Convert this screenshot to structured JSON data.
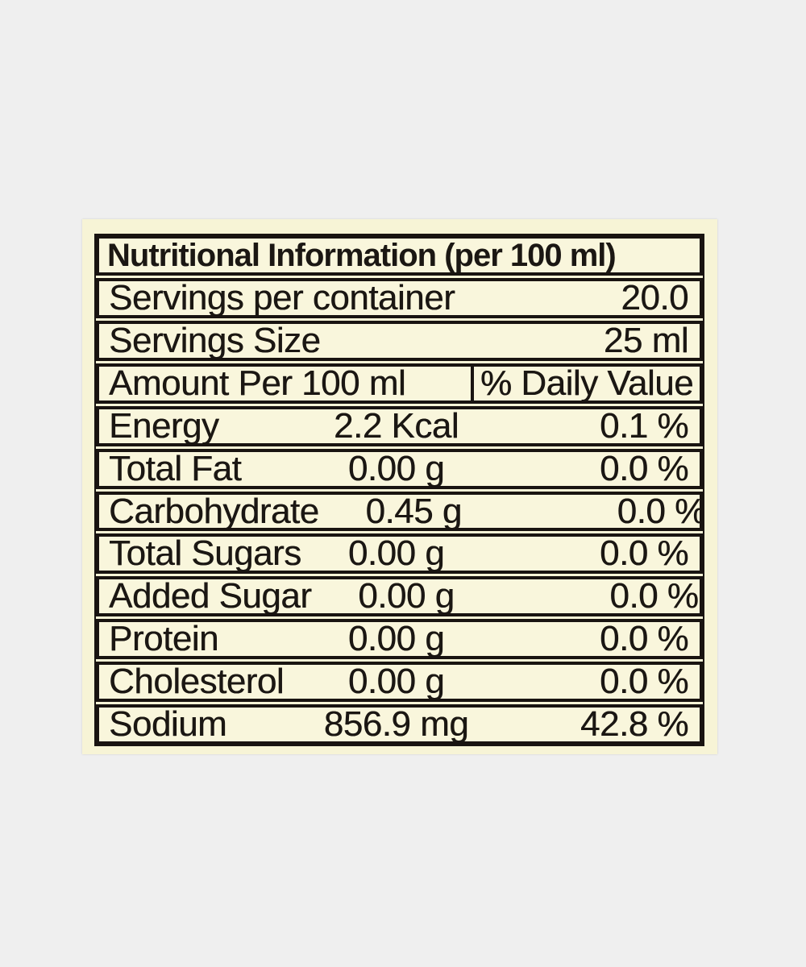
{
  "label": {
    "title": "Nutritional Information (per 100 ml)",
    "serving_rows": [
      {
        "name": "Servings per container",
        "value": "20.0"
      },
      {
        "name": "Servings Size",
        "value": "25 ml"
      }
    ],
    "column_headers": {
      "amount": "Amount Per 100 ml",
      "daily_value": "% Daily Value"
    },
    "nutrient_rows": [
      {
        "name": "Energy",
        "amount": "2.2 Kcal",
        "percent": "0.1 %"
      },
      {
        "name": "Total Fat",
        "amount": "0.00 g",
        "percent": "0.0 %"
      },
      {
        "name": "Carbohydrate",
        "amount": "0.45 g",
        "percent": "0.0 %"
      },
      {
        "name": "Total Sugars",
        "amount": "0.00 g",
        "percent": "0.0 %"
      },
      {
        "name": "Added Sugar",
        "amount": "0.00 g",
        "percent": "0.0 %"
      },
      {
        "name": "Protein",
        "amount": "0.00 g",
        "percent": "0.0 %"
      },
      {
        "name": "Cholesterol",
        "amount": "0.00 g",
        "percent": "0.0 %"
      },
      {
        "name": "Sodium",
        "amount": "856.9 mg",
        "percent": "42.8 %"
      }
    ],
    "colors": {
      "page_background": "#efefef",
      "label_background": "#f7f4d6",
      "row_background": "#f9f6dc",
      "border": "#191411",
      "text": "#1b1713"
    }
  }
}
